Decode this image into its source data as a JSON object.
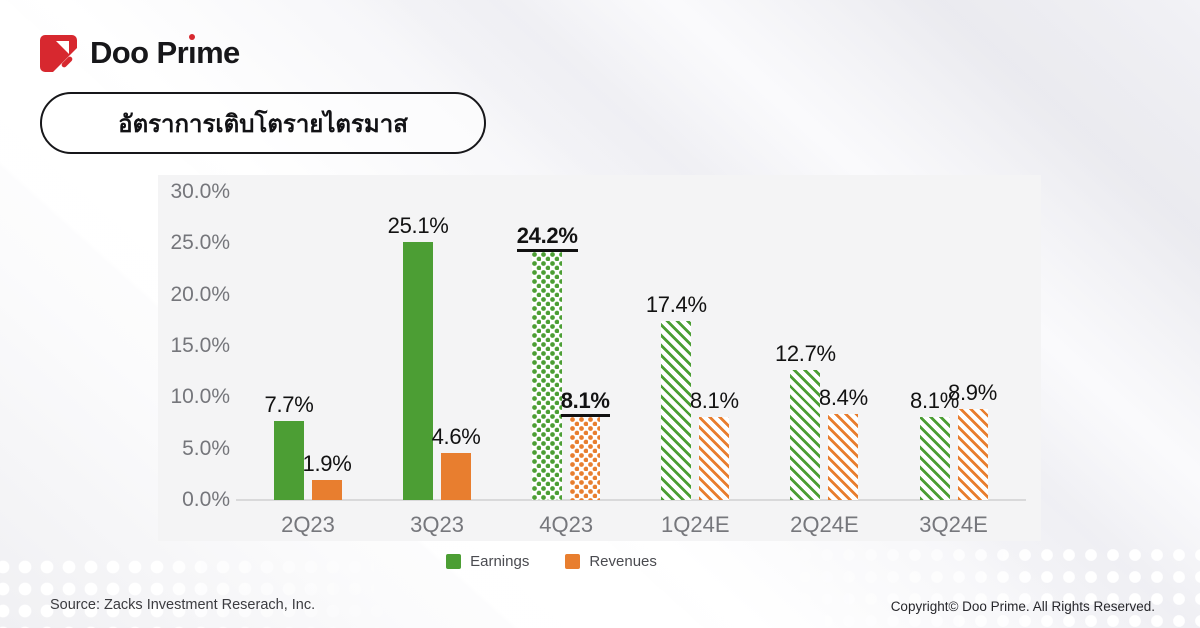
{
  "header": {
    "brand": "Doo Prime"
  },
  "title": {
    "text": "อัตราการเติบโตรายไตรมาส"
  },
  "colors": {
    "brand_red": "#D7282F",
    "earnings_green": "#4C9E34",
    "revenues_orange": "#E87E2F",
    "panel_bg": "#f4f4f5"
  },
  "chart_data": {
    "type": "bar",
    "title": "อัตราการเติบโตรายไตรมาส",
    "categories": [
      "2Q23",
      "3Q23",
      "4Q23",
      "1Q24E",
      "2Q24E",
      "3Q24E"
    ],
    "series": [
      {
        "name": "Earnings",
        "color": "#4C9E34",
        "values": [
          7.7,
          25.1,
          24.2,
          17.4,
          12.7,
          8.1
        ],
        "labels": [
          "7.7%",
          "25.1%",
          "24.2%",
          "17.4%",
          "12.7%",
          "8.1%"
        ]
      },
      {
        "name": "Revenues",
        "color": "#E87E2F",
        "values": [
          1.9,
          4.6,
          8.1,
          8.1,
          8.4,
          8.9
        ],
        "labels": [
          "1.9%",
          "4.6%",
          "8.1%",
          "8.1%",
          "8.4%",
          "8.9%"
        ]
      }
    ],
    "patterns": [
      "solid",
      "solid",
      "dots",
      "stripes",
      "stripes",
      "stripes"
    ],
    "emphasized": [
      false,
      false,
      true,
      false,
      false,
      false
    ],
    "yticks": [
      0,
      5,
      10,
      15,
      20,
      25,
      30
    ],
    "ytick_labels": [
      "0.0%",
      "5.0%",
      "10.0%",
      "15.0%",
      "20.0%",
      "25.0%",
      "30.0%"
    ],
    "ylim": [
      0,
      30
    ],
    "xlabel": "",
    "ylabel": "",
    "grid": false,
    "value_labels": true,
    "legend_position": "bottom"
  },
  "legend": {
    "items": [
      {
        "label": "Earnings",
        "color": "#4C9E34"
      },
      {
        "label": "Revenues",
        "color": "#E87E2F"
      }
    ]
  },
  "footer": {
    "source": "Source: Zacks Investment Reserach, Inc.",
    "copyright": "Copyright© Doo Prime. All Rights Reserved."
  }
}
